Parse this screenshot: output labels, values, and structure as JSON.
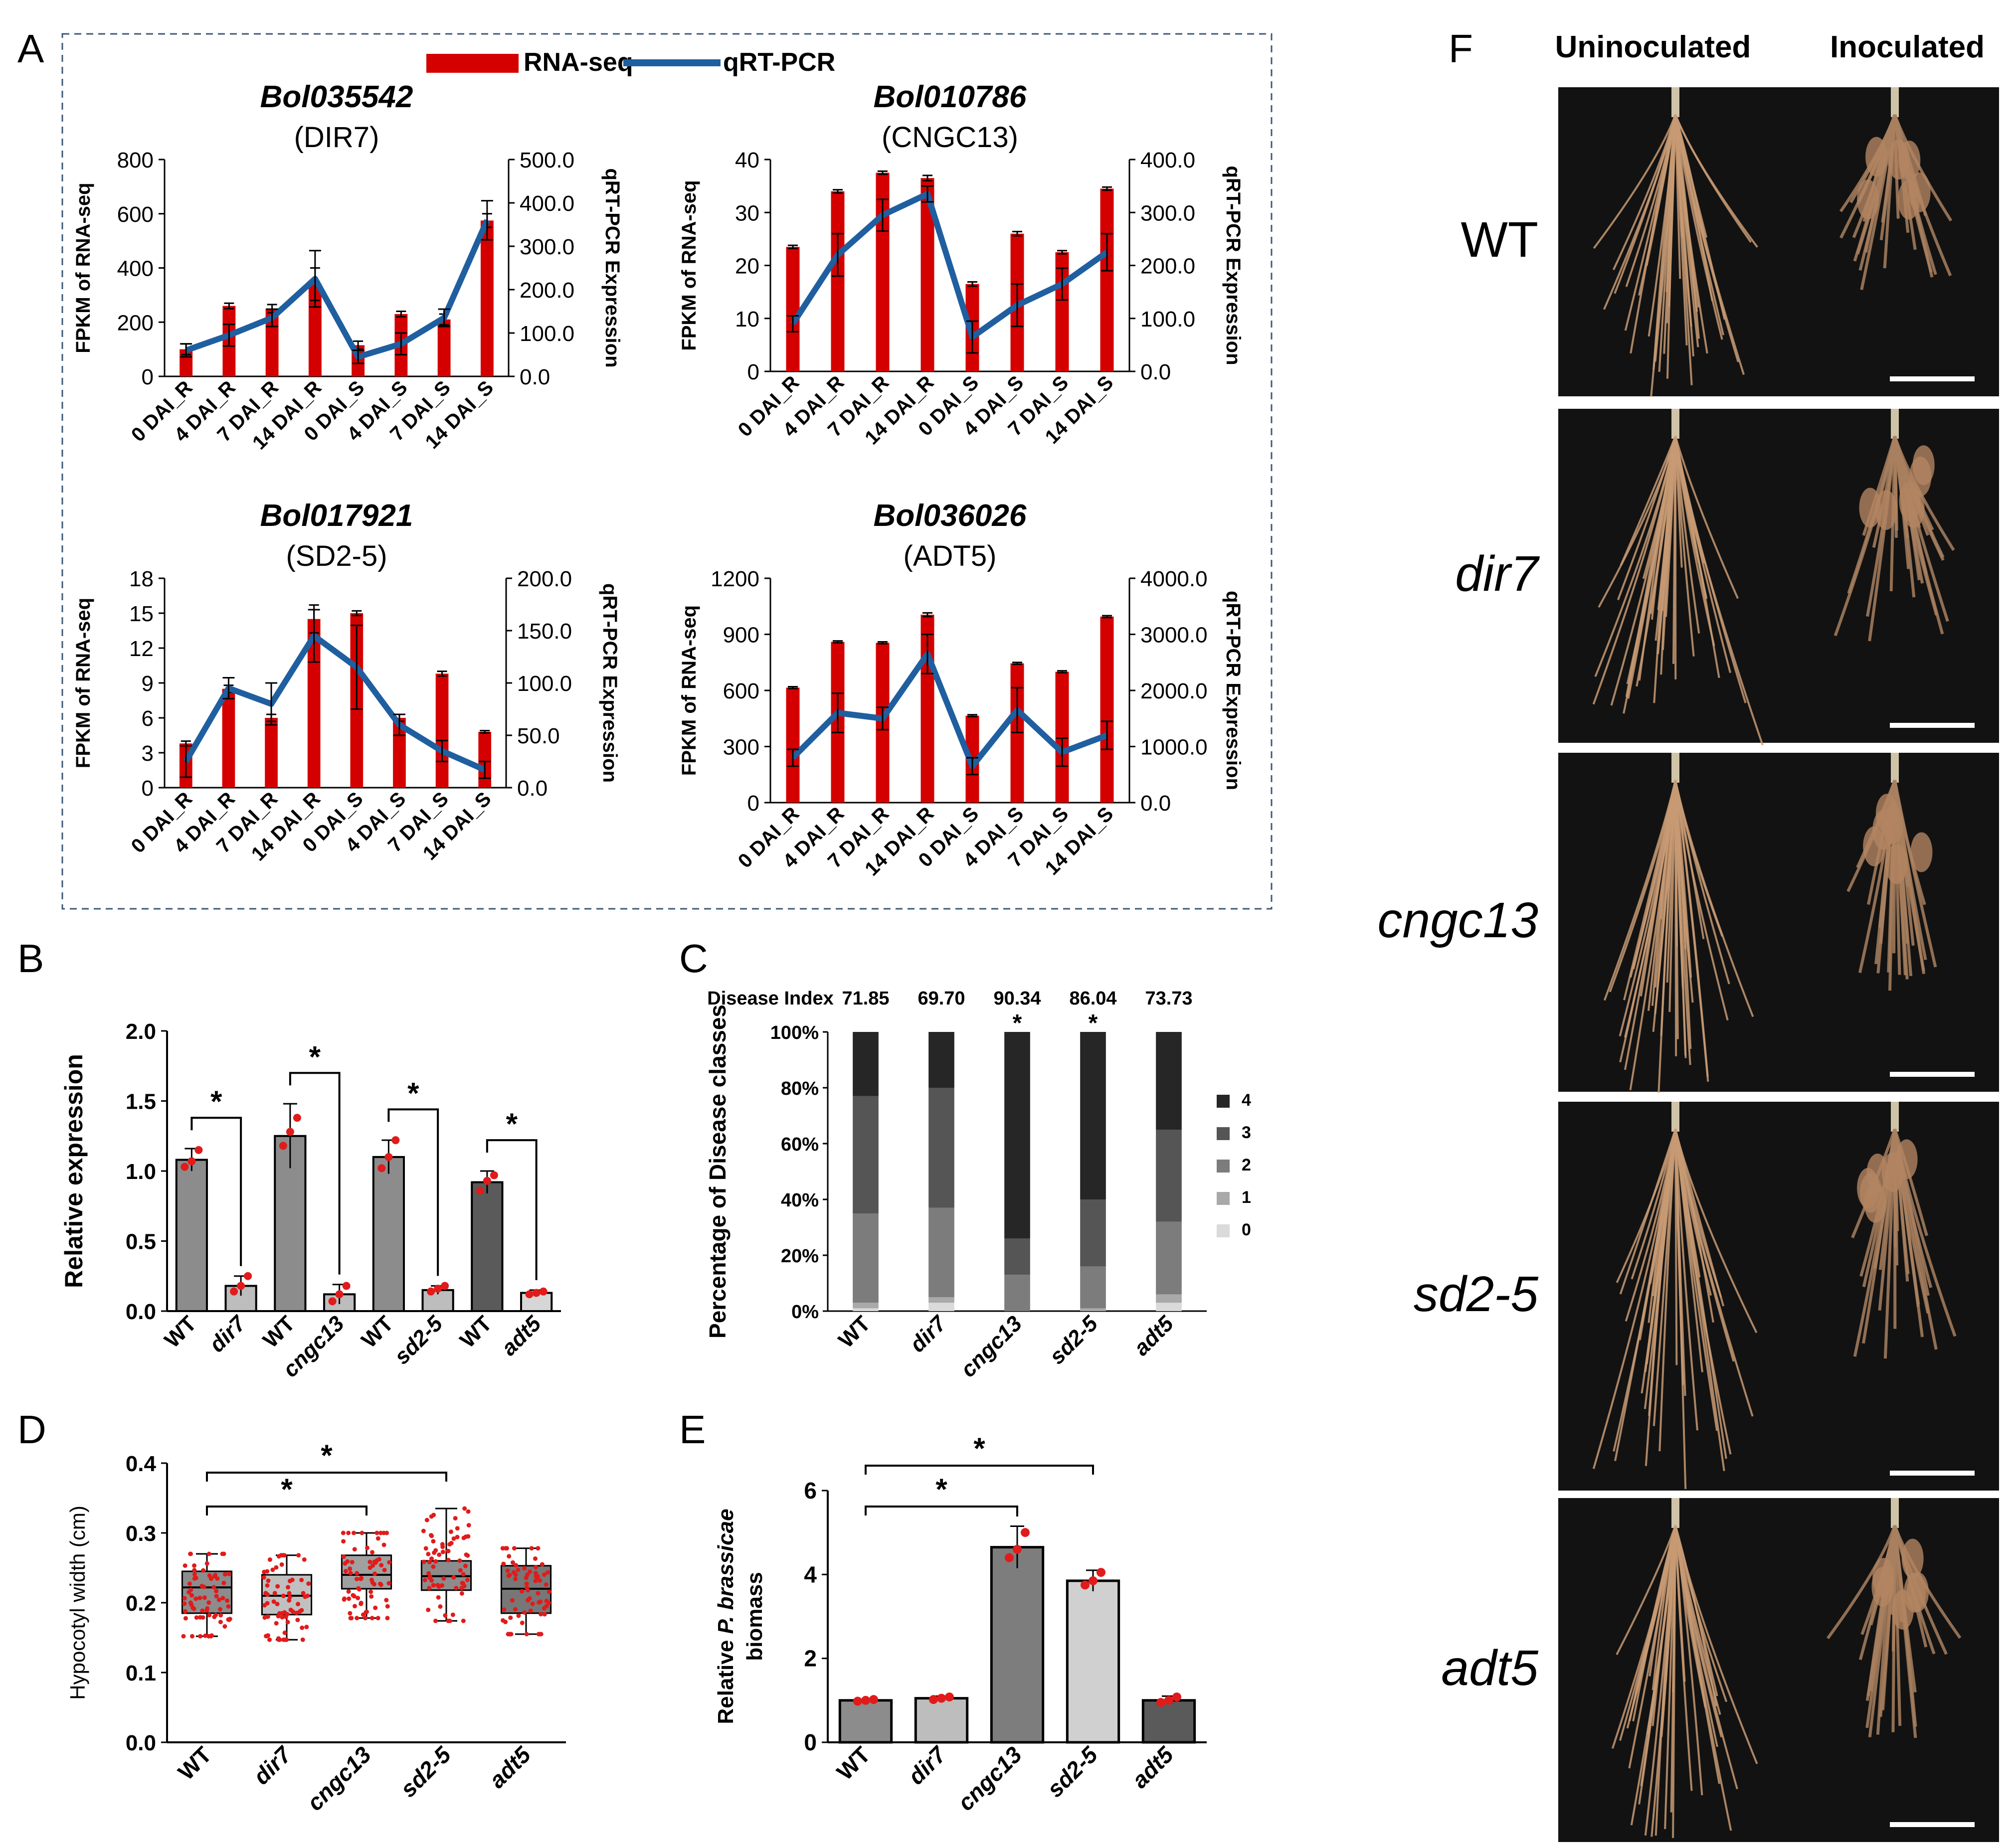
{
  "panel_letters": {
    "A": "A",
    "B": "B",
    "C": "C",
    "D": "D",
    "E": "E",
    "F": "F"
  },
  "colors": {
    "rnaseq": "#d40000",
    "qpcr": "#1f5fa0",
    "star": "#000000",
    "dot": "#e11b1b"
  },
  "legend": {
    "rnaseq": "RNA-seq",
    "qpcr": "qRT-PCR"
  },
  "chart_data": [
    {
      "id": "A1",
      "type": "bar+line",
      "title": "Bol035542",
      "subtitle": "(DIR7)",
      "categories": [
        "0 DAI_R",
        "4 DAI_R",
        "7 DAI_R",
        "14 DAI_R",
        "0 DAI_S",
        "4 DAI_S",
        "7 DAI_S",
        "14 DAI_S"
      ],
      "ylabel": "FPKM of RNA-seq",
      "y2label": "qRT-PCR Expression",
      "ylim": [
        0,
        800
      ],
      "yticks": [
        "0",
        "200",
        "400",
        "600",
        "800"
      ],
      "y2lim": [
        0,
        500
      ],
      "y2ticks": [
        "0.0",
        "100.0",
        "200.0",
        "300.0",
        "400.0",
        "500.0"
      ],
      "series": [
        {
          "name": "RNA-seq",
          "axis": "left",
          "values": [
            100,
            260,
            250,
            340,
            115,
            230,
            210,
            575
          ],
          "err": [
            20,
            10,
            15,
            60,
            15,
            10,
            20,
            25
          ]
        },
        {
          "name": "qRT-PCR",
          "axis": "right",
          "values": [
            60,
            95,
            135,
            225,
            45,
            75,
            135,
            360
          ],
          "err": [
            15,
            25,
            20,
            65,
            15,
            25,
            20,
            45
          ]
        }
      ]
    },
    {
      "id": "A2",
      "type": "bar+line",
      "title": "Bol010786",
      "subtitle": "(CNGC13)",
      "categories": [
        "0 DAI_R",
        "4 DAI_R",
        "7 DAI_R",
        "14 DAI_R",
        "0 DAI_S",
        "4 DAI_S",
        "7 DAI_S",
        "14 DAI_S"
      ],
      "ylabel": "FPKM of RNA-seq",
      "y2label": "qRT-PCR Expression",
      "ylim": [
        0,
        40
      ],
      "yticks": [
        "0",
        "10",
        "20",
        "30",
        "40"
      ],
      "y2lim": [
        0,
        400
      ],
      "y2ticks": [
        "0.0",
        "100.0",
        "200.0",
        "300.0",
        "400.0"
      ],
      "series": [
        {
          "name": "RNA-seq",
          "axis": "left",
          "values": [
            23.5,
            34,
            37.5,
            36.5,
            16.5,
            26,
            22.5,
            34.5
          ],
          "err": [
            0.3,
            0.3,
            0.3,
            0.5,
            0.4,
            0.4,
            0.3,
            0.3
          ]
        },
        {
          "name": "qRT-PCR",
          "axis": "right",
          "values": [
            90,
            220,
            295,
            335,
            65,
            125,
            165,
            225
          ],
          "err": [
            15,
            40,
            30,
            15,
            30,
            40,
            30,
            35
          ]
        }
      ]
    },
    {
      "id": "A3",
      "type": "bar+line",
      "title": "Bol017921",
      "subtitle": "(SD2-5)",
      "categories": [
        "0 DAI_R",
        "4 DAI_R",
        "7 DAI_R",
        "14 DAI_R",
        "0 DAI_S",
        "4 DAI_S",
        "7 DAI_S",
        "14 DAI_S"
      ],
      "ylabel": "FPKM of RNA-seq",
      "y2label": "qRT-PCR Expression",
      "ylim": [
        0,
        18
      ],
      "yticks": [
        "0",
        "3",
        "6",
        "9",
        "12",
        "15",
        "18"
      ],
      "y2lim": [
        0,
        200
      ],
      "y2ticks": [
        "0.0",
        "50.0",
        "100.0",
        "150.0",
        "200.0"
      ],
      "series": [
        {
          "name": "RNA-seq",
          "axis": "left",
          "values": [
            3.8,
            8.5,
            6,
            14.5,
            15,
            6,
            9.8,
            4.8
          ],
          "err": [
            0.2,
            0.3,
            0.3,
            1.2,
            0.2,
            0.3,
            0.2,
            0.1
          ]
        },
        {
          "name": "qRT-PCR",
          "axis": "right",
          "values": [
            25,
            95,
            80,
            145,
            115,
            60,
            35,
            17
          ],
          "err": [
            15,
            10,
            20,
            25,
            40,
            10,
            10,
            8
          ]
        }
      ]
    },
    {
      "id": "A4",
      "type": "bar+line",
      "title": "Bol036026",
      "subtitle": "(ADT5)",
      "categories": [
        "0 DAI_R",
        "4 DAI_R",
        "7 DAI_R",
        "14 DAI_R",
        "0 DAI_S",
        "4 DAI_S",
        "7 DAI_S",
        "14 DAI_S"
      ],
      "ylabel": "FPKM of RNA-seq",
      "y2label": "qRT-PCR Expression",
      "ylim": [
        0,
        1200
      ],
      "yticks": [
        "0",
        "300",
        "600",
        "900",
        "1200"
      ],
      "y2lim": [
        0,
        4000
      ],
      "y2ticks": [
        "0.0",
        "1000.0",
        "2000.0",
        "3000.0",
        "4000.0"
      ],
      "series": [
        {
          "name": "RNA-seq",
          "axis": "left",
          "values": [
            615,
            860,
            855,
            1005,
            465,
            745,
            700,
            995
          ],
          "err": [
            5,
            5,
            5,
            10,
            5,
            5,
            5,
            5
          ]
        },
        {
          "name": "qRT-PCR",
          "axis": "right",
          "values": [
            800,
            1600,
            1500,
            2650,
            650,
            1650,
            900,
            1200
          ],
          "err": [
            150,
            350,
            200,
            350,
            150,
            400,
            250,
            250
          ]
        }
      ]
    },
    {
      "id": "B",
      "type": "bar",
      "categories": [
        "WT",
        "dir7",
        "WT",
        "cngc13",
        "WT",
        "sd2-5",
        "WT",
        "adt5"
      ],
      "values": [
        1.08,
        0.18,
        1.25,
        0.12,
        1.1,
        0.15,
        0.92,
        0.13
      ],
      "err": [
        0.08,
        0.07,
        0.23,
        0.07,
        0.12,
        0.03,
        0.08,
        0.02
      ],
      "points": [
        [
          1.03,
          1.07,
          1.15
        ],
        [
          0.14,
          0.18,
          0.25
        ],
        [
          1.18,
          1.28,
          1.38
        ],
        [
          0.07,
          0.12,
          0.18
        ],
        [
          1.02,
          1.1,
          1.22
        ],
        [
          0.14,
          0.16,
          0.18
        ],
        [
          0.86,
          0.93,
          0.97
        ],
        [
          0.12,
          0.13,
          0.14
        ]
      ],
      "fills": [
        "#8c8c8c",
        "#bdbdbd",
        "#8c8c8c",
        "#bdbdbd",
        "#8c8c8c",
        "#bdbdbd",
        "#5a5a5a",
        "#d6d6d6"
      ],
      "italic": [
        false,
        true,
        false,
        true,
        false,
        true,
        false,
        true
      ],
      "ylabel": "Relative expression",
      "ylim": [
        0,
        2
      ],
      "yticks": [
        "0.0",
        "0.5",
        "1.0",
        "1.5",
        "2.0"
      ],
      "significance": [
        "*",
        "*",
        "*",
        "*"
      ]
    },
    {
      "id": "C",
      "type": "stacked-bar",
      "categories": [
        "WT",
        "dir7",
        "cngc13",
        "sd2-5",
        "adt5"
      ],
      "italic": [
        false,
        true,
        true,
        true,
        true
      ],
      "disease_index_label": "Disease Index",
      "disease_index": [
        "71.85",
        "69.70",
        "90.34",
        "86.04",
        "73.73"
      ],
      "stars": [
        "",
        "",
        "*",
        "*",
        ""
      ],
      "classes": [
        "0",
        "1",
        "2",
        "3",
        "4"
      ],
      "class_colors": [
        "#dadada",
        "#a9a9a9",
        "#7c7c7c",
        "#555555",
        "#262626"
      ],
      "percent": [
        [
          1,
          2,
          32,
          42,
          23
        ],
        [
          3,
          2,
          32,
          43,
          20
        ],
        [
          0,
          0,
          13,
          13,
          74
        ],
        [
          0,
          1,
          15,
          24,
          60
        ],
        [
          3,
          3,
          26,
          33,
          35
        ]
      ],
      "ylabel": "Percentage of Disease classes",
      "yticks": [
        "0%",
        "20%",
        "40%",
        "60%",
        "80%",
        "100%"
      ]
    },
    {
      "id": "D",
      "type": "boxplot",
      "categories": [
        "WT",
        "dir7",
        "cngc13",
        "sd2-5",
        "adt5"
      ],
      "italic": [
        false,
        true,
        true,
        true,
        true
      ],
      "boxes": [
        [
          0.152,
          0.185,
          0.222,
          0.245,
          0.27
        ],
        [
          0.147,
          0.183,
          0.21,
          0.24,
          0.268
        ],
        [
          0.178,
          0.22,
          0.24,
          0.268,
          0.3
        ],
        [
          0.174,
          0.218,
          0.238,
          0.26,
          0.335
        ],
        [
          0.155,
          0.185,
          0.22,
          0.253,
          0.278
        ]
      ],
      "fills": [
        "#8c8c8c",
        "#c0c0c0",
        "#a0a0a0",
        "#8c8c8c",
        "#777777"
      ],
      "ylabel": "Hypocotyl width (cm)",
      "ylim": [
        0,
        0.4
      ],
      "yticks": [
        "0.0",
        "0.1",
        "0.2",
        "0.3",
        "0.4"
      ],
      "significance": [
        "*",
        "*"
      ]
    },
    {
      "id": "E",
      "type": "bar",
      "categories": [
        "WT",
        "dir7",
        "cngc13",
        "sd2-5",
        "adt5"
      ],
      "italic": [
        false,
        true,
        true,
        true,
        true
      ],
      "values": [
        1.0,
        1.05,
        4.65,
        3.85,
        1.0
      ],
      "err": [
        0.02,
        0.05,
        0.5,
        0.25,
        0.1
      ],
      "points": [
        [
          0.98,
          1.0,
          1.02
        ],
        [
          1.02,
          1.05,
          1.08
        ],
        [
          4.4,
          4.6,
          5.0
        ],
        [
          3.75,
          3.85,
          4.05
        ],
        [
          0.95,
          1.0,
          1.08
        ]
      ],
      "fills": [
        "#8c8c8c",
        "#bdbdbd",
        "#7d7d7d",
        "#d0d0d0",
        "#5a5a5a"
      ],
      "ylabel_pre": "Relative ",
      "ylabel_it": "P. brassicae",
      "ylabel2": "biomass",
      "ylim": [
        0,
        6
      ],
      "yticks": [
        "0",
        "2",
        "4",
        "6"
      ],
      "significance": [
        "*",
        "*"
      ]
    }
  ],
  "photo_panel": {
    "headers": [
      "Uninoculated",
      "Inoculated"
    ],
    "rows": [
      {
        "label": "WT",
        "italic": false
      },
      {
        "label": "dir7",
        "italic": true
      },
      {
        "label": "cngc13",
        "italic": true
      },
      {
        "label": "sd2-5",
        "italic": true
      },
      {
        "label": "adt5",
        "italic": true
      }
    ]
  }
}
